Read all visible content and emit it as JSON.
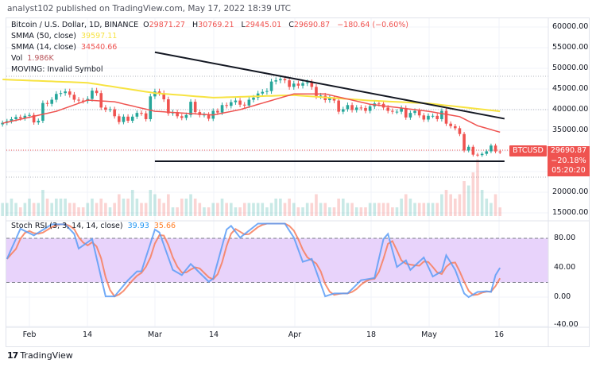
{
  "header": {
    "published": "analyst102 published on TradingView.com, May 17, 2022 18:39 UTC"
  },
  "legend": {
    "symbol": "Bitcoin / U.S. Dollar, 1D, BINANCE",
    "open_label": "O",
    "open": "29871.27",
    "high_label": "H",
    "high": "30769.21",
    "low_label": "L",
    "low": "29445.01",
    "close_label": "C",
    "close": "29690.87",
    "change": "−180.64 (−0.60%)",
    "smma50_label": "SMMA (50, close)",
    "smma50_value": "39597.11",
    "smma14_label": "SMMA (14, close)",
    "smma14_value": "34540.66",
    "vol_label": "Vol",
    "vol_value": "1.986K",
    "moving": "MOVING: Invalid Symbol"
  },
  "price_axis": [
    "60000.00",
    "55000.00",
    "50000.00",
    "45000.00",
    "40000.00",
    "35000.00",
    "20000.00",
    "15000.00"
  ],
  "price_label": {
    "symbol": "BTCUSD",
    "price": "29690.87",
    "change": "−20.18%",
    "countdown": "05:20:20"
  },
  "stoch": {
    "label": "Stoch RSI (3, 3, 14, 14, close)",
    "k_value": "39.93",
    "d_value": "35.66",
    "axis": [
      "80.00",
      "40.00",
      "0.00",
      "-40.00"
    ]
  },
  "time_axis": [
    "Feb",
    "14",
    "Mar",
    "14",
    "Apr",
    "18",
    "May",
    "16"
  ],
  "footer": {
    "brand": "TradingView"
  },
  "colors": {
    "up": "#26a69a",
    "down": "#ef5350",
    "smma50": "#f7e341",
    "smma14": "#ef5350",
    "stoch_k": "#5b9cf6",
    "stoch_d": "#f77c5a",
    "band": "#e8d3fb"
  },
  "chart_data": {
    "type": "candlestick",
    "start_date": "2022-01-26",
    "price_range": [
      15000,
      60000
    ],
    "close": [
      36800,
      37200,
      37700,
      38200,
      37900,
      38500,
      38700,
      36900,
      37300,
      41600,
      41400,
      42400,
      43800,
      44000,
      44400,
      43600,
      42400,
      42200,
      42100,
      42600,
      44600,
      44000,
      40500,
      40000,
      40100,
      38400,
      37000,
      38300,
      37300,
      38300,
      39200,
      39100,
      37700,
      43200,
      44400,
      44000,
      42500,
      39100,
      39400,
      38400,
      38000,
      38700,
      41900,
      39400,
      38700,
      38800,
      37800,
      39700,
      39300,
      41100,
      40900,
      41800,
      42200,
      41200,
      41000,
      42400,
      42900,
      43900,
      44300,
      44500,
      46800,
      47100,
      47400,
      47100,
      45500,
      46300,
      45800,
      46400,
      46600,
      45500,
      43200,
      43400,
      42300,
      42800,
      42200,
      39500,
      40100,
      41100,
      39900,
      40500,
      40400,
      39700,
      40800,
      41500,
      41400,
      40500,
      39700,
      39500,
      39500,
      40400,
      38100,
      39200,
      39700,
      38600,
      37600,
      38500,
      38500,
      37700,
      39700,
      36600,
      36000,
      35500,
      34100,
      30100,
      31000,
      29100,
      29000,
      29300,
      29900,
      31300,
      29870,
      29690.87
    ],
    "volume_k": [
      3,
      3,
      4,
      3,
      2,
      3,
      4,
      3,
      3,
      6,
      4,
      3,
      4,
      4,
      4,
      3,
      3,
      2,
      2,
      3,
      4,
      3,
      4,
      3,
      2,
      3,
      5,
      4,
      4,
      6,
      4,
      3,
      3,
      6,
      5,
      4,
      3,
      5,
      2,
      2,
      4,
      4,
      5,
      4,
      3,
      2,
      2,
      3,
      3,
      4,
      3,
      3,
      2,
      2,
      3,
      3,
      3,
      3,
      3,
      2,
      3,
      4,
      4,
      3,
      4,
      3,
      2,
      2,
      3,
      3,
      5,
      3,
      3,
      2,
      2,
      4,
      4,
      3,
      3,
      2,
      2,
      2,
      3,
      3,
      3,
      3,
      3,
      2,
      2,
      4,
      5,
      4,
      3,
      3,
      3,
      3,
      3,
      3,
      5,
      6,
      5,
      4,
      5,
      8,
      7,
      10,
      13,
      6,
      4,
      3,
      5,
      1.986
    ],
    "smma50": [
      [
        "2022-01-26",
        47300
      ],
      [
        "2022-02-14",
        46500
      ],
      [
        "2022-03-01",
        44000
      ],
      [
        "2022-03-14",
        42900
      ],
      [
        "2022-04-01",
        43500
      ],
      [
        "2022-04-18",
        42200
      ],
      [
        "2022-05-01",
        41500
      ],
      [
        "2022-05-17",
        39597.11
      ]
    ],
    "smma14": [
      [
        "2022-01-26",
        36700
      ],
      [
        "2022-02-07",
        39600
      ],
      [
        "2022-02-14",
        42300
      ],
      [
        "2022-02-20",
        41900
      ],
      [
        "2022-03-01",
        39600
      ],
      [
        "2022-03-14",
        38700
      ],
      [
        "2022-03-20",
        40000
      ],
      [
        "2022-04-01",
        43800
      ],
      [
        "2022-04-08",
        43800
      ],
      [
        "2022-04-18",
        41300
      ],
      [
        "2022-05-01",
        39600
      ],
      [
        "2022-05-08",
        38300
      ],
      [
        "2022-05-12",
        36100
      ],
      [
        "2022-05-17",
        34540.66
      ]
    ],
    "trendlines": [
      {
        "from": [
          "2022-03-01",
          53900
        ],
        "to": [
          "2022-05-18",
          37800
        ]
      },
      {
        "from": [
          "2022-03-01",
          27500
        ],
        "to": [
          "2022-05-18",
          27500
        ]
      }
    ],
    "stoch_range": [
      -40,
      100
    ],
    "stoch_bands": [
      20,
      80
    ],
    "stoch_k": [
      [
        "2022-01-27",
        52
      ],
      [
        "2022-01-30",
        93
      ],
      [
        "2022-02-02",
        84
      ],
      [
        "2022-02-06",
        99
      ],
      [
        "2022-02-09",
        99
      ],
      [
        "2022-02-11",
        86
      ],
      [
        "2022-02-12",
        66
      ],
      [
        "2022-02-15",
        79
      ],
      [
        "2022-02-18",
        1
      ],
      [
        "2022-02-20",
        1
      ],
      [
        "2022-02-23",
        23
      ],
      [
        "2022-02-25",
        35
      ],
      [
        "2022-02-26",
        35
      ],
      [
        "2022-03-01",
        92
      ],
      [
        "2022-03-02",
        88
      ],
      [
        "2022-03-05",
        37
      ],
      [
        "2022-03-07",
        30
      ],
      [
        "2022-03-09",
        45
      ],
      [
        "2022-03-13",
        21
      ],
      [
        "2022-03-14",
        25
      ],
      [
        "2022-03-17",
        92
      ],
      [
        "2022-03-18",
        97
      ],
      [
        "2022-03-20",
        81
      ],
      [
        "2022-03-24",
        100
      ],
      [
        "2022-03-30",
        100
      ],
      [
        "2022-04-01",
        81
      ],
      [
        "2022-04-03",
        48
      ],
      [
        "2022-04-05",
        52
      ],
      [
        "2022-04-08",
        1
      ],
      [
        "2022-04-10",
        5
      ],
      [
        "2022-04-13",
        5
      ],
      [
        "2022-04-16",
        23
      ],
      [
        "2022-04-19",
        26
      ],
      [
        "2022-04-21",
        79
      ],
      [
        "2022-04-22",
        86
      ],
      [
        "2022-04-24",
        41
      ],
      [
        "2022-04-26",
        50
      ],
      [
        "2022-04-27",
        37
      ],
      [
        "2022-04-30",
        54
      ],
      [
        "2022-05-02",
        28
      ],
      [
        "2022-05-04",
        35
      ],
      [
        "2022-05-05",
        57
      ],
      [
        "2022-05-07",
        37
      ],
      [
        "2022-05-09",
        5
      ],
      [
        "2022-05-10",
        0
      ],
      [
        "2022-05-12",
        7
      ],
      [
        "2022-05-14",
        8
      ],
      [
        "2022-05-15",
        7
      ],
      [
        "2022-05-16",
        30
      ],
      [
        "2022-05-17",
        39.93
      ]
    ]
  }
}
